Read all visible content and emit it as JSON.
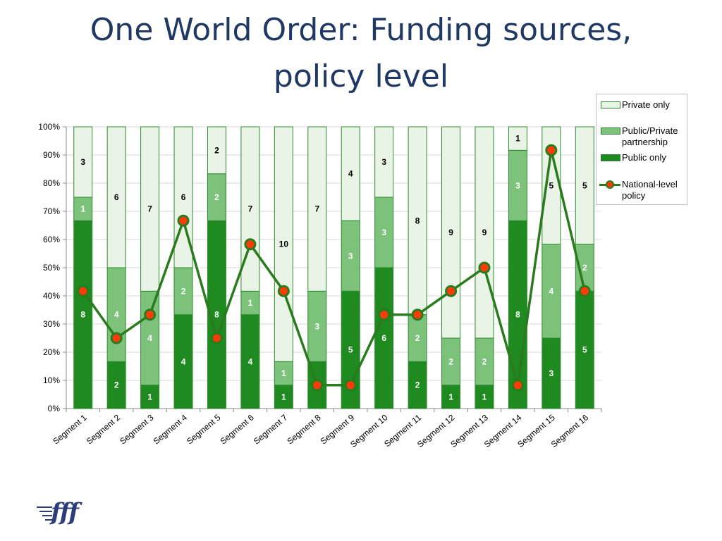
{
  "slide_title": "One World Order: Funding sources, policy level",
  "logo_text": "fff",
  "legend": {
    "items": [
      {
        "label": "Private only",
        "kind": "bar",
        "color": "#e9f3e6"
      },
      {
        "label": "Public/Private partnership",
        "kind": "bar",
        "color": "#7cc27a"
      },
      {
        "label": "Public only",
        "kind": "bar",
        "color": "#1f8a1f"
      },
      {
        "label": "National-level policy",
        "kind": "line",
        "color": "#2a7a1e",
        "marker": "#ff3b0a"
      }
    ]
  },
  "chart_data": {
    "type": "bar",
    "stacked": "percent",
    "categories": [
      "Segment 1",
      "Segment 2",
      "Segment 3",
      "Segment 4",
      "Segment 5",
      "Segment 6",
      "Segment 7",
      "Segment 8",
      "Segment 9",
      "Segment 10",
      "Segment 11",
      "Segment 12",
      "Segment 13",
      "Segment 14",
      "Segment 15",
      "Segment 16"
    ],
    "series": [
      {
        "name": "Public only",
        "color": "#1f8a1f",
        "values": [
          8,
          2,
          1,
          4,
          8,
          4,
          1,
          2,
          5,
          6,
          2,
          1,
          1,
          8,
          3,
          5
        ]
      },
      {
        "name": "Public/Private partnership",
        "color": "#7cc27a",
        "values": [
          1,
          4,
          4,
          2,
          2,
          1,
          1,
          3,
          3,
          3,
          2,
          2,
          2,
          3,
          4,
          2
        ]
      },
      {
        "name": "Private only",
        "color": "#e9f3e6",
        "values": [
          3,
          6,
          7,
          6,
          2,
          7,
          10,
          7,
          4,
          3,
          8,
          9,
          9,
          1,
          5,
          5
        ]
      }
    ],
    "line": {
      "name": "National-level policy",
      "color": "#2a7a1e",
      "marker_color": "#ff3b0a",
      "values": [
        41.7,
        25.0,
        33.3,
        66.7,
        25.0,
        58.3,
        41.7,
        8.3,
        8.3,
        33.3,
        33.3,
        41.7,
        50.0,
        8.3,
        91.7,
        41.7
      ]
    },
    "yticks": [
      "0%",
      "10%",
      "20%",
      "30%",
      "40%",
      "50%",
      "60%",
      "70%",
      "80%",
      "90%",
      "100%"
    ],
    "ylim": [
      0,
      100
    ],
    "grid": true,
    "legend_position": "top-right"
  }
}
